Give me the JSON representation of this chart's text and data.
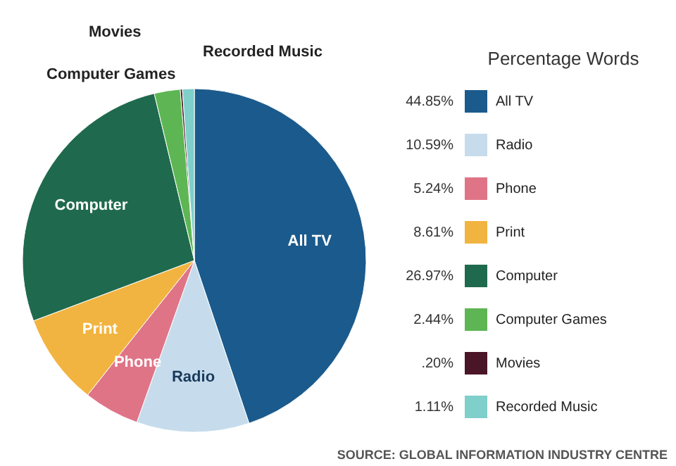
{
  "chart_data": {
    "type": "pie",
    "categories": [
      "All TV",
      "Radio",
      "Phone",
      "Print",
      "Computer",
      "Computer Games",
      "Movies",
      "Recorded Music"
    ],
    "values": [
      44.85,
      10.59,
      5.24,
      8.61,
      26.97,
      2.44,
      0.2,
      1.11
    ],
    "value_labels": [
      "44.85%",
      "10.59%",
      "5.24%",
      "8.61%",
      "26.97%",
      "2.44%",
      ".20%",
      "1.11%"
    ],
    "colors": [
      "#1b5a8c",
      "#c6dcec",
      "#df7487",
      "#f2b440",
      "#1f6a4e",
      "#5db653",
      "#4a1527",
      "#7fcfca"
    ],
    "legend_title": "Percentage Words",
    "legend": "right",
    "annotations": [
      "SOURCE: GLOBAL INFORMATION INDUSTRY CENTRE"
    ]
  }
}
